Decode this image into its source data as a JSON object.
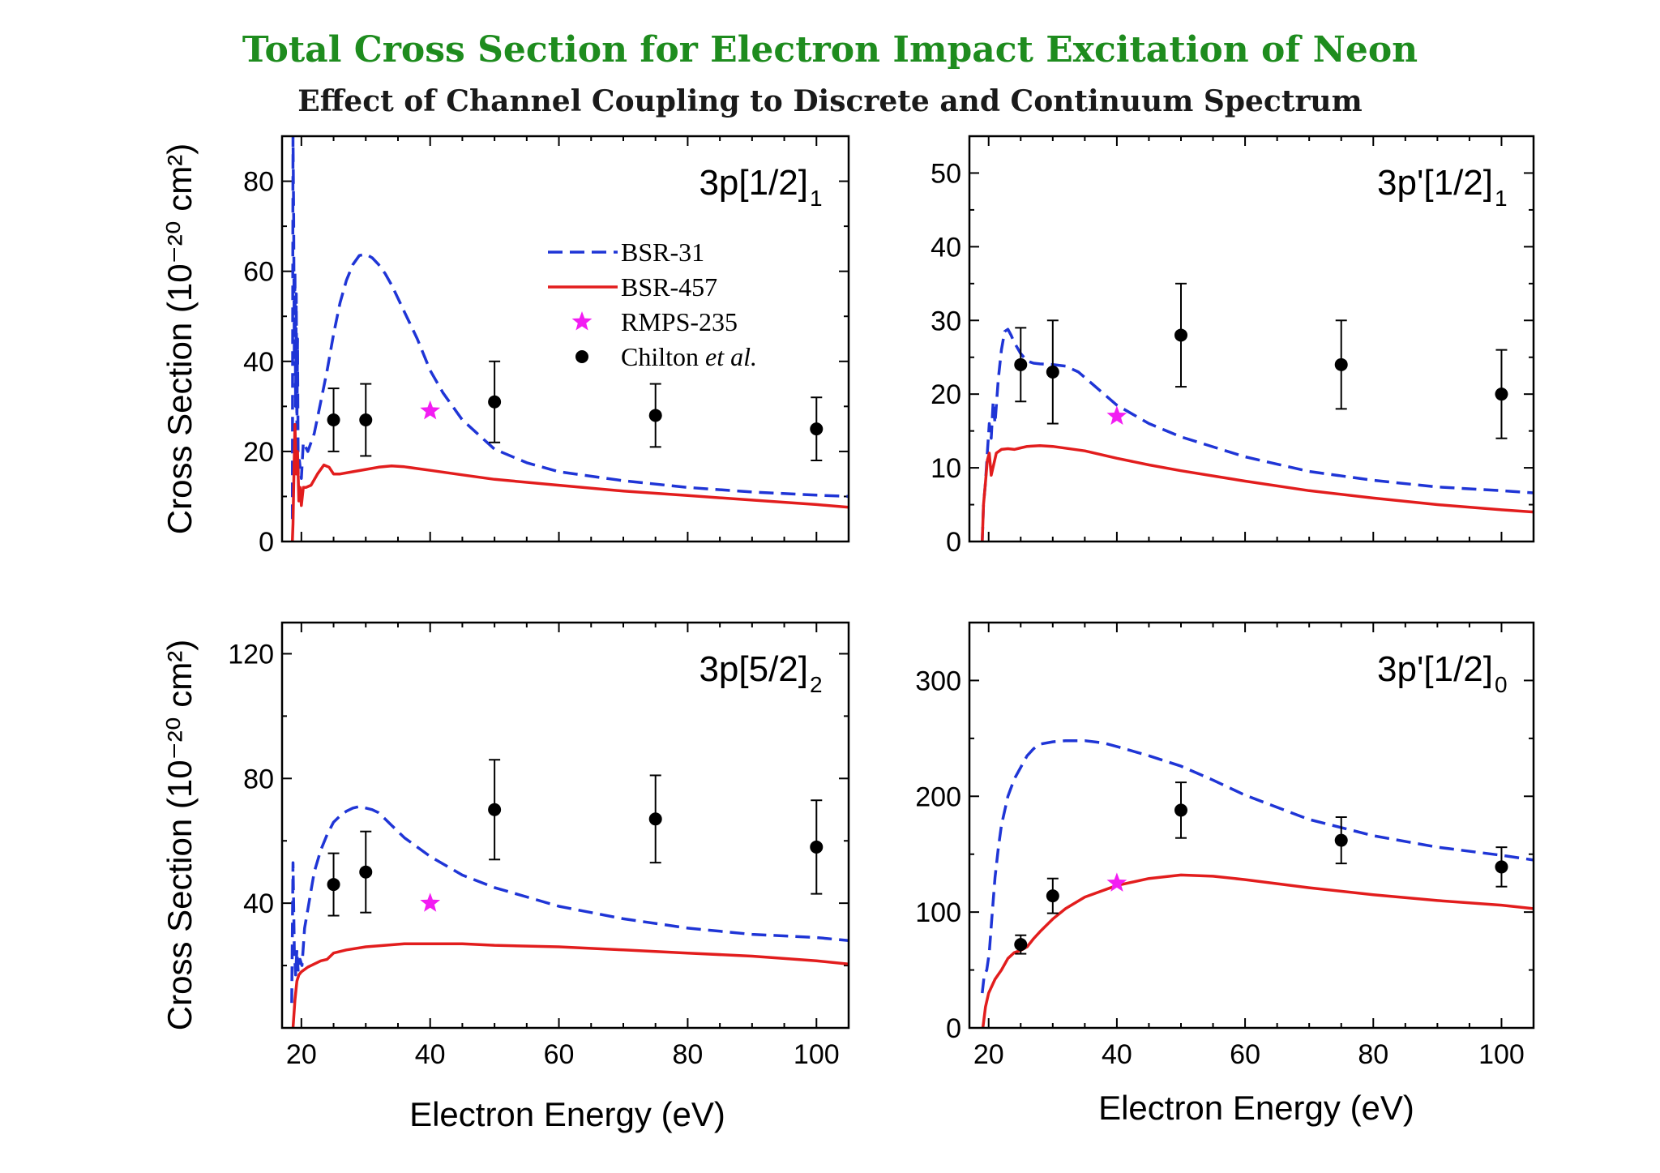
{
  "header": {
    "title": "Total Cross Section for Electron Impact Excitation of Neon",
    "subtitle": "Effect of Channel Coupling to Discrete and Continuum Spectrum",
    "title_color": "#1e8c1e",
    "subtitle_color": "#1a1a1a"
  },
  "shared": {
    "ylabel": "Cross Section (10⁻²⁰ cm²)",
    "xlabel": "Electron Energy (eV)",
    "legend": {
      "placement": "top-panel-center",
      "items": [
        {
          "key": "bsr31",
          "label": "BSR-31",
          "style": "dashed-line"
        },
        {
          "key": "bsr457",
          "label": "BSR-457",
          "style": "solid-line"
        },
        {
          "key": "rmps",
          "label": "RMPS-235",
          "style": "star"
        },
        {
          "key": "chilton",
          "label_prefix": "Chilton ",
          "label_italic": "et al.",
          "style": "filled-circle"
        }
      ]
    },
    "colors": {
      "bsr31": "#1f35d6",
      "bsr457": "#e21d1d",
      "rmps": "#f21df2",
      "chilton": "#000000",
      "axis": "#000000"
    }
  },
  "chart_data": [
    {
      "type": "line",
      "panel": "top-left",
      "label_main": "3p[1/2]",
      "label_sub": "1",
      "xlim": [
        17,
        105
      ],
      "ylim": [
        0,
        90
      ],
      "xticks": [
        20,
        40,
        60,
        80,
        100
      ],
      "yticks": [
        0,
        20,
        40,
        60,
        80
      ],
      "show_xticklabels": false,
      "series": [
        {
          "key": "bsr31",
          "name": "BSR-31",
          "x": [
            18.6,
            18.7,
            18.8,
            18.9,
            19.0,
            19.1,
            19.2,
            19.3,
            19.4,
            19.5,
            19.7,
            20.0,
            20.3,
            21,
            22,
            23,
            24,
            25,
            26,
            27,
            28,
            29,
            30,
            31,
            32,
            33,
            34,
            35,
            36,
            38,
            40,
            42,
            45,
            50,
            55,
            60,
            70,
            80,
            90,
            100,
            105
          ],
          "y": [
            5,
            90,
            72,
            40,
            60,
            30,
            55,
            25,
            45,
            15,
            18,
            14,
            22,
            20,
            24,
            31,
            38,
            46,
            53,
            58,
            61.5,
            63.5,
            63.8,
            63,
            61.5,
            59.5,
            57,
            54,
            51,
            45,
            38,
            33,
            27,
            20.5,
            17.5,
            15.5,
            13.5,
            12,
            11,
            10.3,
            10
          ]
        },
        {
          "key": "bsr457",
          "name": "BSR-457",
          "x": [
            18.6,
            18.7,
            18.8,
            19.0,
            19.2,
            19.4,
            19.6,
            19.8,
            20.0,
            20.3,
            20.7,
            21.5,
            22.5,
            23.5,
            24.3,
            25.0,
            26,
            28,
            30,
            32,
            34,
            36,
            38,
            40,
            45,
            50,
            60,
            70,
            80,
            90,
            100,
            105
          ],
          "y": [
            0,
            4,
            12,
            26,
            15,
            20,
            9,
            12,
            8,
            12,
            12,
            12.5,
            15,
            17,
            16.5,
            15,
            15,
            15.5,
            16,
            16.5,
            16.8,
            16.6,
            16.2,
            15.8,
            14.8,
            13.8,
            12.5,
            11.2,
            10.2,
            9.2,
            8.2,
            7.6
          ]
        },
        {
          "key": "rmps",
          "name": "RMPS-235",
          "points": [
            {
              "x": 40,
              "y": 29
            }
          ]
        },
        {
          "key": "chilton",
          "name": "Chilton et al.",
          "points": [
            {
              "x": 25,
              "y": 27,
              "err": 7
            },
            {
              "x": 30,
              "y": 27,
              "err": 8
            },
            {
              "x": 50,
              "y": 31,
              "err": 9
            },
            {
              "x": 75,
              "y": 28,
              "err": 7
            },
            {
              "x": 100,
              "y": 25,
              "err": 7
            }
          ]
        }
      ]
    },
    {
      "type": "line",
      "panel": "top-right",
      "label_main": "3p'[1/2]",
      "label_sub": "1",
      "xlim": [
        17,
        105
      ],
      "ylim": [
        0,
        55
      ],
      "xticks": [
        20,
        40,
        60,
        80,
        100
      ],
      "yticks": [
        0,
        10,
        20,
        30,
        40,
        50
      ],
      "show_xticklabels": false,
      "series": [
        {
          "key": "bsr31",
          "name": "BSR-31",
          "x": [
            19.0,
            19.2,
            19.5,
            19.8,
            20.1,
            20.4,
            20.7,
            21.0,
            21.5,
            22,
            22.5,
            23,
            23.5,
            24,
            25,
            26,
            27,
            28,
            30,
            32,
            34,
            36,
            38,
            40,
            45,
            50,
            60,
            70,
            80,
            90,
            100,
            105
          ],
          "y": [
            0,
            5,
            8,
            12,
            16,
            14,
            19,
            16,
            22,
            26,
            28.5,
            28.8,
            28,
            27,
            25.5,
            24.5,
            24.2,
            24.1,
            24,
            23.8,
            23,
            21.5,
            20,
            18.5,
            16,
            14.2,
            11.5,
            9.5,
            8.3,
            7.4,
            6.9,
            6.6
          ]
        },
        {
          "key": "bsr457",
          "name": "BSR-457",
          "x": [
            19.0,
            19.2,
            19.5,
            19.8,
            20.1,
            20.4,
            20.8,
            21.2,
            22,
            23,
            24,
            25,
            26,
            28,
            30,
            35,
            40,
            45,
            50,
            60,
            70,
            80,
            90,
            100,
            105
          ],
          "y": [
            0,
            5,
            8,
            11,
            12,
            9,
            10.5,
            12,
            12.5,
            12.6,
            12.5,
            12.7,
            12.9,
            13,
            12.9,
            12.3,
            11.3,
            10.4,
            9.6,
            8.2,
            6.9,
            5.9,
            5,
            4.3,
            4
          ]
        },
        {
          "key": "rmps",
          "name": "RMPS-235",
          "points": [
            {
              "x": 40,
              "y": 17
            }
          ]
        },
        {
          "key": "chilton",
          "name": "Chilton et al.",
          "points": [
            {
              "x": 25,
              "y": 24,
              "err": 5
            },
            {
              "x": 30,
              "y": 23,
              "err": 7
            },
            {
              "x": 50,
              "y": 28,
              "err": 7
            },
            {
              "x": 75,
              "y": 24,
              "err": 6
            },
            {
              "x": 100,
              "y": 20,
              "err": 6
            }
          ]
        }
      ]
    },
    {
      "type": "line",
      "panel": "bottom-left",
      "label_main": "3p[5/2]",
      "label_sub": "2",
      "xlim": [
        17,
        105
      ],
      "ylim": [
        0,
        130
      ],
      "xticks": [
        20,
        40,
        60,
        80,
        100
      ],
      "yticks": [
        40,
        80,
        120
      ],
      "show_xticklabels": true,
      "series": [
        {
          "key": "bsr31",
          "name": "BSR-31",
          "x": [
            18.5,
            18.7,
            18.9,
            19.1,
            19.3,
            19.5,
            19.8,
            20.1,
            20.5,
            21,
            21.5,
            22,
            23,
            24,
            25,
            26,
            27,
            28,
            29,
            30,
            31,
            32,
            33,
            34,
            35,
            36,
            38,
            40,
            45,
            50,
            60,
            70,
            80,
            90,
            100,
            105
          ],
          "y": [
            8,
            53,
            25,
            17,
            25,
            18,
            22,
            20,
            32,
            38,
            44,
            50,
            57,
            62,
            66,
            68,
            69.5,
            70.5,
            71,
            70.5,
            70,
            69,
            67,
            65,
            63,
            61,
            58,
            55,
            49,
            45,
            39,
            35,
            32,
            30,
            29,
            28
          ]
        },
        {
          "key": "bsr457",
          "name": "BSR-457",
          "x": [
            18.7,
            19.0,
            19.3,
            19.6,
            20,
            21,
            22,
            23,
            24,
            25,
            27,
            30,
            33,
            36,
            40,
            45,
            50,
            60,
            70,
            80,
            90,
            100,
            105
          ],
          "y": [
            0,
            9,
            15,
            17,
            18,
            19.5,
            20.5,
            21.5,
            22,
            24,
            25,
            26,
            26.5,
            27,
            27,
            27,
            26.5,
            26,
            25,
            24,
            23,
            21.5,
            20.5
          ]
        },
        {
          "key": "rmps",
          "name": "RMPS-235",
          "points": [
            {
              "x": 40,
              "y": 40
            }
          ]
        },
        {
          "key": "chilton",
          "name": "Chilton et al.",
          "points": [
            {
              "x": 25,
              "y": 46,
              "err": 10
            },
            {
              "x": 30,
              "y": 50,
              "err": 13
            },
            {
              "x": 50,
              "y": 70,
              "err": 16
            },
            {
              "x": 75,
              "y": 67,
              "err": 14
            },
            {
              "x": 100,
              "y": 58,
              "err": 15
            }
          ]
        }
      ]
    },
    {
      "type": "line",
      "panel": "bottom-right",
      "label_main": "3p'[1/2]",
      "label_sub": "0",
      "xlim": [
        17,
        105
      ],
      "ylim": [
        0,
        350
      ],
      "xticks": [
        20,
        40,
        60,
        80,
        100
      ],
      "yticks": [
        0,
        100,
        200,
        300
      ],
      "show_xticklabels": true,
      "series": [
        {
          "key": "bsr31",
          "name": "BSR-31",
          "x": [
            19.0,
            19.3,
            19.7,
            20.1,
            20.5,
            21,
            21.5,
            22,
            23,
            24,
            25,
            26,
            27,
            28,
            30,
            32,
            35,
            38,
            40,
            45,
            50,
            55,
            60,
            70,
            80,
            90,
            100,
            105
          ],
          "y": [
            30,
            45,
            50,
            65,
            95,
            130,
            155,
            175,
            200,
            215,
            225,
            235,
            241,
            245,
            247,
            248,
            248,
            246,
            243,
            235,
            226,
            214,
            201,
            180,
            166,
            156,
            149,
            145
          ]
        },
        {
          "key": "bsr457",
          "name": "BSR-457",
          "x": [
            19.1,
            19.5,
            20,
            21,
            22,
            23,
            24,
            25,
            26,
            27,
            28,
            30,
            32,
            35,
            40,
            45,
            50,
            55,
            60,
            70,
            80,
            90,
            100,
            105
          ],
          "y": [
            0,
            18,
            30,
            42,
            50,
            60,
            65,
            67,
            70,
            77,
            83,
            94,
            103,
            113,
            123,
            129,
            132,
            131,
            128,
            121,
            115,
            110,
            106,
            103
          ]
        },
        {
          "key": "rmps",
          "name": "RMPS-235",
          "points": [
            {
              "x": 40,
              "y": 125
            }
          ]
        },
        {
          "key": "chilton",
          "name": "Chilton et al.",
          "points": [
            {
              "x": 25,
              "y": 72,
              "err": 8
            },
            {
              "x": 30,
              "y": 114,
              "err": 15
            },
            {
              "x": 50,
              "y": 188,
              "err": 24
            },
            {
              "x": 75,
              "y": 162,
              "err": 20
            },
            {
              "x": 100,
              "y": 139,
              "err": 17
            }
          ]
        }
      ]
    }
  ]
}
